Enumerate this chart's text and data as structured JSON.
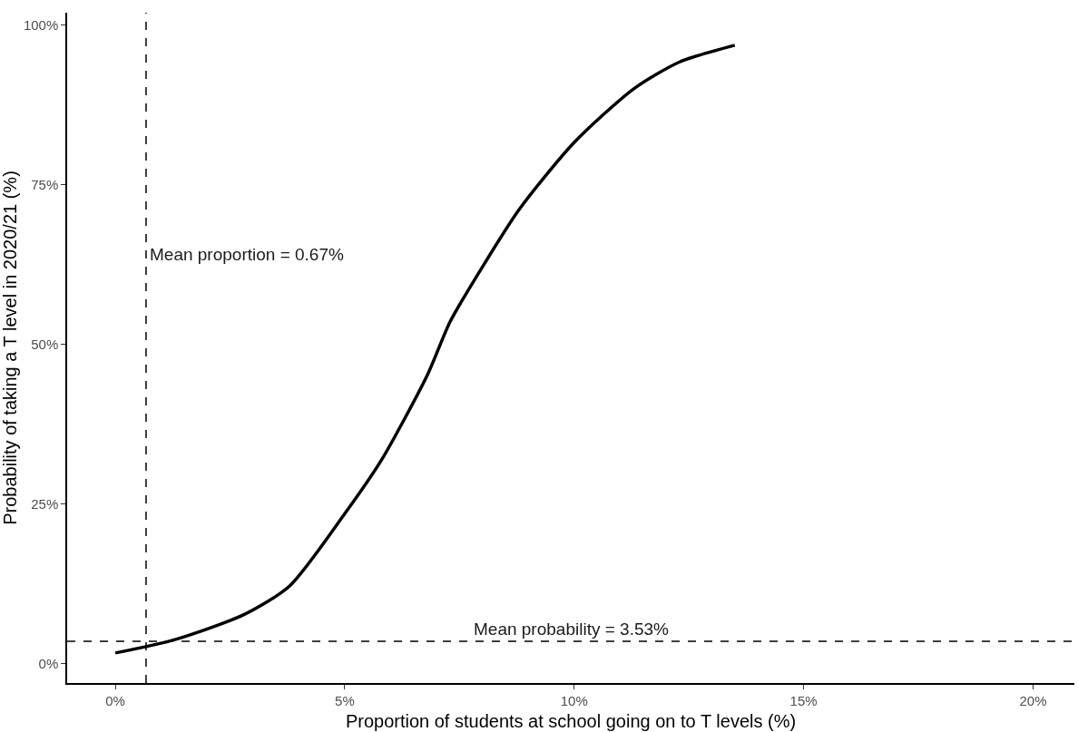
{
  "chart_data": {
    "type": "line",
    "xlabel": "Proportion of students at school going on to T levels (%)",
    "ylabel": "Probability of taking a T level in 2020/21 (%)",
    "x": [
      0,
      1.3,
      2.8,
      3.8,
      5.0,
      5.8,
      6.8,
      7.3,
      8.05,
      8.8,
      10.0,
      11.3,
      12.3,
      13.5
    ],
    "series": [
      {
        "color": "#000000",
        "values": [
          1.7,
          3.8,
          7.7,
          12.2,
          23.5,
          31.9,
          45.2,
          53.6,
          62.7,
          71.1,
          81.6,
          90.0,
          94.2,
          96.8
        ]
      }
    ],
    "xlim": [
      -1.05,
      20.9
    ],
    "ylim": [
      -3.0,
      101.9
    ],
    "xticks": [
      {
        "value": 0,
        "label": "0%"
      },
      {
        "value": 5,
        "label": "5%"
      },
      {
        "value": 10,
        "label": "10%"
      },
      {
        "value": 15,
        "label": "15%"
      },
      {
        "value": 20,
        "label": "20%"
      }
    ],
    "yticks": [
      {
        "value": 0,
        "label": "0%"
      },
      {
        "value": 25,
        "label": "25%"
      },
      {
        "value": 50,
        "label": "50%"
      },
      {
        "value": 75,
        "label": "75%"
      },
      {
        "value": 100,
        "label": "100%"
      }
    ],
    "ref_lines": [
      {
        "axis": "x",
        "value": 0.67,
        "label": "Mean proportion = 0.67%",
        "color": "#000000",
        "line_style": "dashed"
      },
      {
        "axis": "y",
        "value": 3.53,
        "label": "Mean probability = 3.53%",
        "color": "#000000",
        "line_style": "dashed"
      }
    ],
    "marker": "none",
    "line_style": "solid"
  }
}
